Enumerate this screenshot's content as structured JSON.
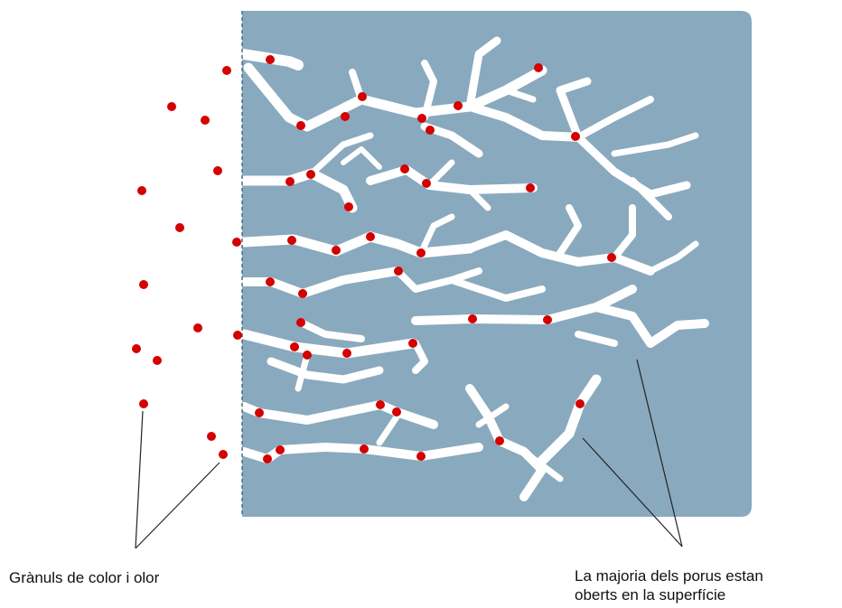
{
  "labels": {
    "granules": "Grànuls de color i olor",
    "pores": [
      "La majoria dels porus estan",
      "oberts en la superfície"
    ]
  }
}
